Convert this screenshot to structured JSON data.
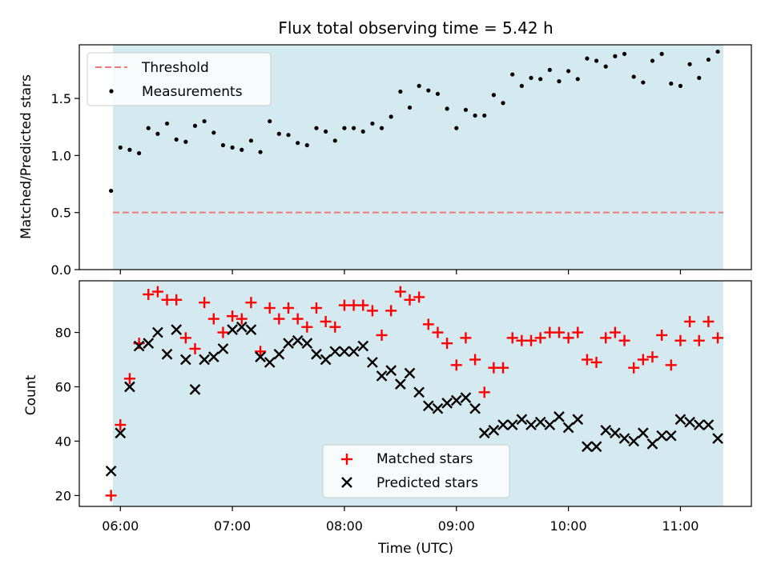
{
  "chart_data": [
    {
      "type": "scatter",
      "title": "Flux total observing time = 5.42 h",
      "xlabel": "",
      "ylabel": "Matched/Predicted stars",
      "ylim": [
        0,
        1.97
      ],
      "yticks": [
        "0.0",
        "0.5",
        "1.0",
        "1.5"
      ],
      "shaded_span": [
        "05:56",
        "11:23"
      ],
      "shade_color": "#d4eaf0",
      "legend": {
        "placement": "upper-left",
        "entries": [
          "Threshold",
          "Measurements"
        ]
      },
      "threshold": {
        "name": "Threshold",
        "value": 0.5,
        "style": "dashed",
        "color": "#f07878"
      },
      "series": [
        {
          "name": "Measurements",
          "marker": "dot",
          "color": "#000000",
          "x": [
            "05:55",
            "06:00",
            "06:05",
            "06:10",
            "06:15",
            "06:20",
            "06:25",
            "06:30",
            "06:35",
            "06:40",
            "06:45",
            "06:50",
            "06:55",
            "07:00",
            "07:05",
            "07:10",
            "07:15",
            "07:20",
            "07:25",
            "07:30",
            "07:35",
            "07:40",
            "07:45",
            "07:50",
            "07:55",
            "08:00",
            "08:05",
            "08:10",
            "08:15",
            "08:20",
            "08:25",
            "08:30",
            "08:35",
            "08:40",
            "08:45",
            "08:50",
            "08:55",
            "09:00",
            "09:05",
            "09:10",
            "09:15",
            "09:20",
            "09:25",
            "09:30",
            "09:35",
            "09:40",
            "09:45",
            "09:50",
            "09:55",
            "10:00",
            "10:05",
            "10:10",
            "10:15",
            "10:20",
            "10:25",
            "10:30",
            "10:35",
            "10:40",
            "10:45",
            "10:50",
            "10:55",
            "11:00",
            "11:05",
            "11:10",
            "11:15",
            "11:20"
          ],
          "y": [
            0.69,
            1.07,
            1.05,
            1.02,
            1.24,
            1.19,
            1.28,
            1.14,
            1.12,
            1.26,
            1.3,
            1.2,
            1.09,
            1.07,
            1.05,
            1.13,
            1.03,
            1.3,
            1.19,
            1.18,
            1.11,
            1.09,
            1.24,
            1.21,
            1.13,
            1.24,
            1.24,
            1.21,
            1.28,
            1.24,
            1.34,
            1.56,
            1.42,
            1.61,
            1.57,
            1.54,
            1.41,
            1.24,
            1.4,
            1.35,
            1.35,
            1.53,
            1.46,
            1.71,
            1.61,
            1.68,
            1.67,
            1.75,
            1.65,
            1.74,
            1.67,
            1.85,
            1.83,
            1.78,
            1.87,
            1.89,
            1.69,
            1.64,
            1.83,
            1.89,
            1.63,
            1.61,
            1.8,
            1.68,
            1.84,
            1.91
          ]
        }
      ]
    },
    {
      "type": "scatter",
      "title": "",
      "xlabel": "Time (UTC)",
      "ylabel": "Count",
      "ylim": [
        16,
        99
      ],
      "yticks": [
        "20",
        "40",
        "60",
        "80"
      ],
      "xticks": [
        "06:00",
        "07:00",
        "08:00",
        "09:00",
        "10:00",
        "11:00"
      ],
      "xlim": [
        "05:38",
        "11:38"
      ],
      "shaded_span": [
        "05:56",
        "11:23"
      ],
      "shade_color": "#d4eaf0",
      "legend": {
        "placement": "lower-center",
        "entries": [
          "Matched stars",
          "Predicted stars"
        ]
      },
      "series": [
        {
          "name": "Matched stars",
          "marker": "plus",
          "color": "#ff0000",
          "x": [
            "05:55",
            "06:00",
            "06:05",
            "06:10",
            "06:15",
            "06:20",
            "06:25",
            "06:30",
            "06:35",
            "06:40",
            "06:45",
            "06:50",
            "06:55",
            "07:00",
            "07:05",
            "07:10",
            "07:15",
            "07:20",
            "07:25",
            "07:30",
            "07:35",
            "07:40",
            "07:45",
            "07:50",
            "07:55",
            "08:00",
            "08:05",
            "08:10",
            "08:15",
            "08:20",
            "08:25",
            "08:30",
            "08:35",
            "08:40",
            "08:45",
            "08:50",
            "08:55",
            "09:00",
            "09:05",
            "09:10",
            "09:15",
            "09:20",
            "09:25",
            "09:30",
            "09:35",
            "09:40",
            "09:45",
            "09:50",
            "09:55",
            "10:00",
            "10:05",
            "10:10",
            "10:15",
            "10:20",
            "10:25",
            "10:30",
            "10:35",
            "10:40",
            "10:45",
            "10:50",
            "10:55",
            "11:00",
            "11:05",
            "11:10",
            "11:15",
            "11:20"
          ],
          "y": [
            20,
            46,
            63,
            76,
            94,
            95,
            92,
            92,
            78,
            74,
            91,
            85,
            80,
            86,
            85,
            91,
            73,
            89,
            85,
            89,
            85,
            82,
            89,
            84,
            82,
            90,
            90,
            90,
            88,
            79,
            88,
            95,
            92,
            93,
            83,
            80,
            76,
            68,
            78,
            70,
            58,
            67,
            67,
            78,
            77,
            77,
            78,
            80,
            80,
            78,
            80,
            70,
            69,
            78,
            80,
            77,
            67,
            70,
            71,
            79,
            68,
            77,
            84,
            77,
            84,
            78
          ]
        },
        {
          "name": "Predicted stars",
          "marker": "x",
          "color": "#000000",
          "x": [
            "05:55",
            "06:00",
            "06:05",
            "06:10",
            "06:15",
            "06:20",
            "06:25",
            "06:30",
            "06:35",
            "06:40",
            "06:45",
            "06:50",
            "06:55",
            "07:00",
            "07:05",
            "07:10",
            "07:15",
            "07:20",
            "07:25",
            "07:30",
            "07:35",
            "07:40",
            "07:45",
            "07:50",
            "07:55",
            "08:00",
            "08:05",
            "08:10",
            "08:15",
            "08:20",
            "08:25",
            "08:30",
            "08:35",
            "08:40",
            "08:45",
            "08:50",
            "08:55",
            "09:00",
            "09:05",
            "09:10",
            "09:15",
            "09:20",
            "09:25",
            "09:30",
            "09:35",
            "09:40",
            "09:45",
            "09:50",
            "09:55",
            "10:00",
            "10:05",
            "10:10",
            "10:15",
            "10:20",
            "10:25",
            "10:30",
            "10:35",
            "10:40",
            "10:45",
            "10:50",
            "10:55",
            "11:00",
            "11:05",
            "11:10",
            "11:15",
            "11:20"
          ],
          "y": [
            29,
            43,
            60,
            75,
            76,
            80,
            72,
            81,
            70,
            59,
            70,
            71,
            74,
            81,
            82,
            81,
            71,
            69,
            72,
            76,
            77,
            76,
            72,
            70,
            73,
            73,
            73,
            75,
            69,
            64,
            66,
            61,
            65,
            58,
            53,
            52,
            54,
            55,
            56,
            52,
            43,
            44,
            46,
            46,
            48,
            46,
            47,
            46,
            49,
            45,
            48,
            38,
            38,
            44,
            43,
            41,
            40,
            43,
            39,
            42,
            42,
            48,
            47,
            46,
            46,
            41
          ]
        }
      ]
    }
  ]
}
